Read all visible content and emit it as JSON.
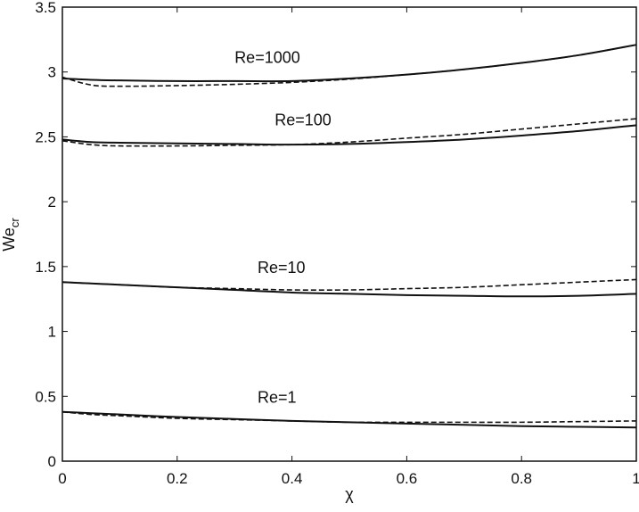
{
  "chart_data": {
    "type": "line",
    "title": "",
    "xlabel": "χ",
    "ylabel": "We",
    "ylabel_subscript": "cr",
    "xlim": [
      0,
      1
    ],
    "ylim": [
      0,
      3.5
    ],
    "xticks": [
      "0",
      "0.2",
      "0.4",
      "0.6",
      "0.8",
      "1"
    ],
    "yticks": [
      "0",
      "0.5",
      "1",
      "1.5",
      "2",
      "2.5",
      "3",
      "3.5"
    ],
    "grid": false,
    "x": [
      0,
      0.05,
      0.1,
      0.2,
      0.3,
      0.4,
      0.5,
      0.6,
      0.7,
      0.8,
      0.9,
      1.0
    ],
    "series": [
      {
        "group": "Re=1000",
        "style": "solid",
        "values": [
          2.95,
          2.94,
          2.935,
          2.93,
          2.93,
          2.93,
          2.95,
          2.98,
          3.02,
          3.07,
          3.13,
          3.21
        ]
      },
      {
        "group": "Re=1000",
        "style": "dashed",
        "values": [
          2.96,
          2.9,
          2.89,
          2.895,
          2.905,
          2.92,
          2.945,
          2.98,
          3.02,
          3.07,
          3.13,
          3.21
        ]
      },
      {
        "group": "Re=100",
        "style": "solid",
        "values": [
          2.48,
          2.46,
          2.455,
          2.45,
          2.445,
          2.44,
          2.445,
          2.46,
          2.48,
          2.51,
          2.545,
          2.59
        ]
      },
      {
        "group": "Re=100",
        "style": "dashed",
        "values": [
          2.47,
          2.44,
          2.43,
          2.43,
          2.435,
          2.44,
          2.46,
          2.49,
          2.52,
          2.56,
          2.6,
          2.64
        ]
      },
      {
        "group": "Re=10",
        "style": "solid",
        "values": [
          1.38,
          1.37,
          1.36,
          1.34,
          1.32,
          1.3,
          1.29,
          1.28,
          1.275,
          1.27,
          1.275,
          1.29
        ]
      },
      {
        "group": "Re=10",
        "style": "dashed",
        "values": [
          1.38,
          1.37,
          1.36,
          1.34,
          1.33,
          1.32,
          1.32,
          1.33,
          1.34,
          1.36,
          1.38,
          1.4
        ]
      },
      {
        "group": "Re=1",
        "style": "solid",
        "values": [
          0.38,
          0.37,
          0.36,
          0.34,
          0.325,
          0.31,
          0.3,
          0.29,
          0.28,
          0.27,
          0.265,
          0.26
        ]
      },
      {
        "group": "Re=1",
        "style": "dashed",
        "values": [
          0.38,
          0.36,
          0.35,
          0.33,
          0.32,
          0.31,
          0.3,
          0.3,
          0.3,
          0.3,
          0.305,
          0.31
        ]
      }
    ],
    "annotations": [
      {
        "text": "Re=1000",
        "x": 0.3,
        "y": 3.07
      },
      {
        "text": "Re=100",
        "x": 0.37,
        "y": 2.59
      },
      {
        "text": "Re=10",
        "x": 0.34,
        "y": 1.45
      },
      {
        "text": "Re=1",
        "x": 0.34,
        "y": 0.45
      }
    ],
    "colors": {
      "line": "#111111",
      "axis": "#111111"
    }
  }
}
